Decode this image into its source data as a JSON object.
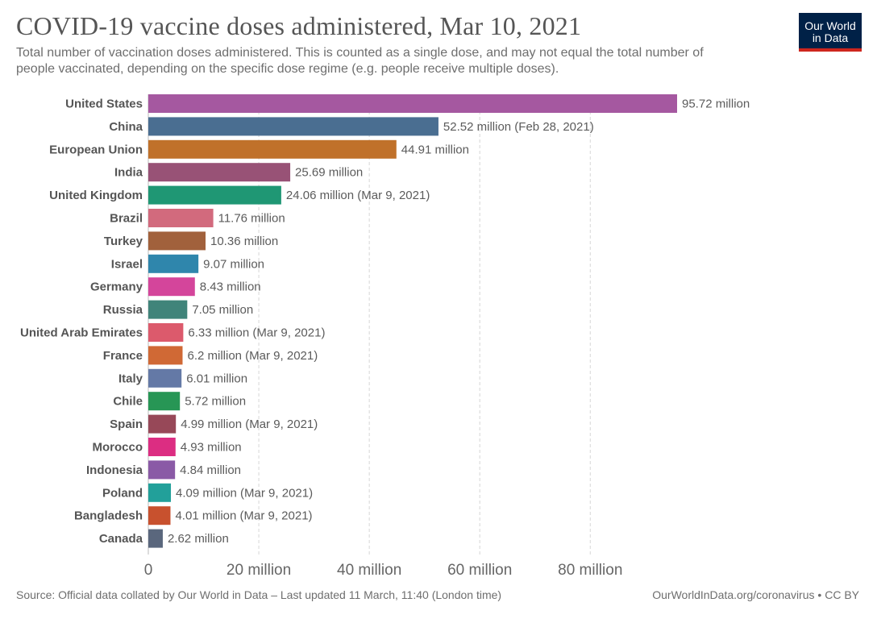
{
  "header": {
    "title": "COVID-19 vaccine doses administered, Mar 10, 2021",
    "subtitle": "Total number of vaccination doses administered. This is counted as a single dose, and may not equal the total number of people vaccinated, depending on the specific dose regime (e.g. people receive multiple doses)."
  },
  "logo": {
    "line1": "Our World",
    "line2": "in Data",
    "bg_color": "#002147",
    "accent_color": "#ce261e"
  },
  "chart_data": {
    "type": "bar",
    "orientation": "horizontal",
    "unit_suffix": " million",
    "xlim": [
      0,
      95.72
    ],
    "xticks": [
      0,
      20,
      40,
      60,
      80
    ],
    "xtick_labels": [
      "0",
      "20 million",
      "40 million",
      "60 million",
      "80 million"
    ],
    "grid": "vertical-dashed",
    "categories": [
      "United States",
      "China",
      "European Union",
      "India",
      "United Kingdom",
      "Brazil",
      "Turkey",
      "Israel",
      "Germany",
      "Russia",
      "United Arab Emirates",
      "France",
      "Italy",
      "Chile",
      "Spain",
      "Morocco",
      "Indonesia",
      "Poland",
      "Bangladesh",
      "Canada"
    ],
    "values": [
      95.72,
      52.52,
      44.91,
      25.69,
      24.06,
      11.76,
      10.36,
      9.07,
      8.43,
      7.05,
      6.33,
      6.2,
      6.01,
      5.72,
      4.99,
      4.93,
      4.84,
      4.09,
      4.01,
      2.62
    ],
    "value_labels": [
      "95.72 million",
      "52.52 million (Feb 28, 2021)",
      "44.91 million",
      "25.69 million",
      "24.06 million (Mar 9, 2021)",
      "11.76 million",
      "10.36 million",
      "9.07 million",
      "8.43 million",
      "7.05 million",
      "6.33 million (Mar 9, 2021)",
      "6.2 million (Mar 9, 2021)",
      "6.01 million",
      "5.72 million",
      "4.99 million (Mar 9, 2021)",
      "4.93 million",
      "4.84 million",
      "4.09 million (Mar 9, 2021)",
      "4.01 million (Mar 9, 2021)",
      "2.62 million"
    ],
    "colors": [
      "#a558a0",
      "#4a6e91",
      "#c0712a",
      "#985276",
      "#1f9774",
      "#d26a7d",
      "#a1613c",
      "#2f86ac",
      "#d4459b",
      "#40847a",
      "#dc5a6c",
      "#d06935",
      "#6479a6",
      "#279655",
      "#974858",
      "#dc2d82",
      "#8a5aa6",
      "#22a09a",
      "#c8512e",
      "#5a677d"
    ]
  },
  "footer": {
    "source": "Source: Official data collated by Our World in Data – Last updated 11 March, 11:40 (London time)",
    "url": "OurWorldInData.org/coronavirus",
    "license": "CC BY"
  }
}
